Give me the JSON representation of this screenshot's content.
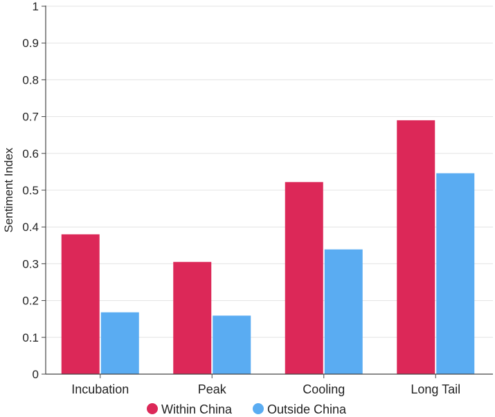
{
  "chart_data": {
    "type": "bar",
    "title": "",
    "xlabel": "",
    "ylabel": "Sentiment Index",
    "ylim": [
      0,
      1
    ],
    "yticks": [
      "0",
      "0.1",
      "0.2",
      "0.3",
      "0.4",
      "0.5",
      "0.6",
      "0.7",
      "0.8",
      "0.9",
      "1"
    ],
    "categories": [
      "Incubation",
      "Peak",
      "Cooling",
      "Long Tail"
    ],
    "series": [
      {
        "name": "Within China",
        "color": "#dc2858",
        "values": [
          0.38,
          0.305,
          0.522,
          0.69
        ]
      },
      {
        "name": "Outside China",
        "color": "#5aacf2",
        "values": [
          0.168,
          0.159,
          0.339,
          0.546
        ]
      }
    ],
    "grid": "horizontal",
    "legend": "bottom-center"
  }
}
